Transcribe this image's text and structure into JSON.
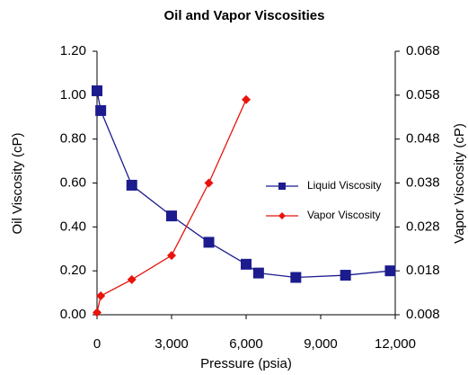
{
  "chart_data": {
    "type": "line",
    "title": "Oil and Vapor Viscosities",
    "x_label": "Pressure (psia)",
    "y_label": "Oil Viscosity (cP)",
    "y2_label": "Vapor Viscosity (cP)",
    "xlim": [
      0,
      12000
    ],
    "xticks": [
      0,
      {
        "value": 3000,
        "label": "3,000"
      },
      {
        "value": 6000,
        "label": "6,000"
      },
      {
        "value": 9000,
        "label": "9,000"
      },
      {
        "value": 12000,
        "label": "12,000"
      }
    ],
    "ylim": [
      0,
      1.2
    ],
    "yticks": [
      {
        "value": 0,
        "label": "0.00"
      },
      {
        "value": 0.2,
        "label": "0.20"
      },
      {
        "value": 0.4,
        "label": "0.40"
      },
      {
        "value": 0.6,
        "label": "0.60"
      },
      {
        "value": 0.8,
        "label": "0.80"
      },
      {
        "value": 1.0,
        "label": "1.00"
      },
      {
        "value": 1.2,
        "label": "1.20"
      }
    ],
    "y2lim": [
      0.008,
      0.068
    ],
    "y2ticks": [
      0.008,
      0.018,
      0.028,
      0.038,
      0.048,
      0.058,
      0.068
    ],
    "series": [
      {
        "name": "Liquid Viscosity",
        "color": "#1c1c8e",
        "marker": "square",
        "x": [
          0,
          150,
          1400,
          3000,
          4500,
          6000,
          6500,
          8000,
          10000,
          11800
        ],
        "values": [
          1.02,
          0.93,
          0.59,
          0.45,
          0.33,
          0.23,
          0.19,
          0.17,
          0.18,
          0.2
        ]
      },
      {
        "name": "Vapor Viscosity",
        "color": "#e8140c",
        "marker": "diamond",
        "axis": "y2",
        "x": [
          0,
          150,
          1400,
          3000,
          4500,
          6000
        ],
        "values": [
          0.0085,
          0.0123,
          0.016,
          0.0215,
          0.038,
          0.057
        ]
      }
    ],
    "legend": "inside-right"
  }
}
